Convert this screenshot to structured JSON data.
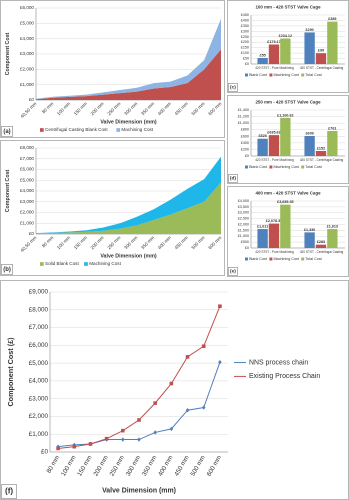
{
  "chart_data": [
    {
      "type": "area",
      "panel_label": "(a)",
      "y_title": "Component Cost",
      "x_title": "Valve Dimension (mm)",
      "legend": "bottom",
      "grid": true,
      "categories": [
        "40,50 mm",
        "80 mm",
        "100 mm",
        "150 mm",
        "200 mm",
        "250 mm",
        "300 mm",
        "350 mm",
        "400 mm",
        "450 mm",
        "500 mm",
        "600 mm"
      ],
      "series": [
        {
          "name": "Centrifugal Casting Blank Cost",
          "color": "#c0504d",
          "values": [
            50,
            150,
            200,
            250,
            350,
            450,
            550,
            750,
            850,
            1100,
            2000,
            3300
          ]
        },
        {
          "name": "Machining Cost",
          "color": "#8db4e2",
          "values": [
            30,
            60,
            80,
            100,
            150,
            200,
            250,
            350,
            350,
            500,
            600,
            2000
          ]
        }
      ],
      "ylim": [
        0,
        6000
      ],
      "yticks": [
        {
          "value": 0,
          "label": "£0"
        },
        {
          "value": 1000,
          "label": "£1,000"
        },
        {
          "value": 2000,
          "label": "£2,000"
        },
        {
          "value": 3000,
          "label": "£3,000"
        },
        {
          "value": 4000,
          "label": "£4,000"
        },
        {
          "value": 5000,
          "label": "£5,000"
        },
        {
          "value": 6000,
          "label": "£6,000"
        }
      ]
    },
    {
      "type": "area",
      "panel_label": "(b)",
      "y_title": "Component Cost",
      "x_title": "Valve Dimension (mm)",
      "legend": "bottom",
      "grid": true,
      "categories": [
        "40,50 mm",
        "80 mm",
        "100 mm",
        "150 mm",
        "200 mm",
        "250 mm",
        "300 mm",
        "350 mm",
        "400 mm",
        "450 mm",
        "500 mm",
        "600 mm"
      ],
      "series": [
        {
          "name": "Solid Blank Cost",
          "color": "#9bbb59",
          "values": [
            50,
            100,
            150,
            200,
            300,
            500,
            800,
            1300,
            1800,
            2400,
            3000,
            4800
          ]
        },
        {
          "name": "Machining Cost",
          "color": "#1fb7ea",
          "values": [
            30,
            50,
            80,
            150,
            300,
            500,
            800,
            1000,
            1400,
            1800,
            2100,
            2400
          ]
        }
      ],
      "ylim": [
        0,
        8000
      ],
      "yticks": [
        {
          "value": 0,
          "label": "£0"
        },
        {
          "value": 1000,
          "label": "£1,000"
        },
        {
          "value": 2000,
          "label": "£2,000"
        },
        {
          "value": 3000,
          "label": "£3,000"
        },
        {
          "value": 4000,
          "label": "£4,000"
        },
        {
          "value": 5000,
          "label": "£5,000"
        },
        {
          "value": 6000,
          "label": "£6,000"
        },
        {
          "value": 7000,
          "label": "£7,000"
        },
        {
          "value": 8000,
          "label": "£8,000"
        }
      ]
    },
    {
      "type": "bar",
      "panel_label": "(c)",
      "title": "100 mm - 420 STST Valve Cage",
      "legend": "bottom",
      "grid": true,
      "categories": [
        "420 STST - Pure Machining",
        "420 STST - Centrifugal Casting"
      ],
      "series": [
        {
          "name": "Blank Cost",
          "color": "#4f81bd",
          "values": [
            55,
            290
          ],
          "value_labels": [
            "£55",
            "£290"
          ]
        },
        {
          "name": "Machining Cost",
          "color": "#c0504d",
          "values": [
            179.17,
            99
          ],
          "value_labels": [
            "£179.17",
            "£99"
          ]
        },
        {
          "name": "Total Cost",
          "color": "#9bbb59",
          "values": [
            234.12,
            389
          ],
          "value_labels": [
            "£234.12",
            "£389"
          ]
        }
      ],
      "ylim": [
        0,
        450
      ],
      "yticks": [
        {
          "value": 0,
          "label": "£0"
        },
        {
          "value": 50,
          "label": "£50"
        },
        {
          "value": 100,
          "label": "£100"
        },
        {
          "value": 150,
          "label": "£150"
        },
        {
          "value": 200,
          "label": "£200"
        },
        {
          "value": 250,
          "label": "£250"
        },
        {
          "value": 300,
          "label": "£300"
        },
        {
          "value": 350,
          "label": "£350"
        },
        {
          "value": 400,
          "label": "£400"
        },
        {
          "value": 450,
          "label": "£450"
        }
      ]
    },
    {
      "type": "bar",
      "panel_label": "(d)",
      "title": "250 mm - 420 STST Valve Cage",
      "legend": "bottom",
      "grid": true,
      "categories": [
        "420 STST - Pure Machining",
        "420 STST - Centrifugal Casting"
      ],
      "series": [
        {
          "name": "Blank Cost",
          "color": "#4f81bd",
          "values": [
            525,
            609
          ],
          "value_labels": [
            "£525",
            "£609"
          ]
        },
        {
          "name": "Machining Cost",
          "color": "#c0504d",
          "values": [
            635.62,
            152
          ],
          "value_labels": [
            "£635.62",
            "£152"
          ]
        },
        {
          "name": "Total Cost",
          "color": "#9bbb59",
          "values": [
            1160.62,
            761
          ],
          "value_labels": [
            "£1,160.62",
            "£761"
          ]
        }
      ],
      "ylim": [
        0,
        1400
      ],
      "yticks": [
        {
          "value": 0,
          "label": "£0"
        },
        {
          "value": 200,
          "label": "£200"
        },
        {
          "value": 400,
          "label": "£400"
        },
        {
          "value": 600,
          "label": "£600"
        },
        {
          "value": 800,
          "label": "£800"
        },
        {
          "value": 1000,
          "label": "£1,000"
        },
        {
          "value": 1200,
          "label": "£1,200"
        },
        {
          "value": 1400,
          "label": "£1,400"
        }
      ]
    },
    {
      "type": "bar",
      "panel_label": "(e)",
      "title": "400 mm - 420 STST Valve Cage",
      "legend": "bottom",
      "grid": true,
      "categories": [
        "420 STST - Pure Machining",
        "420 STST - Centrifugal Casting"
      ],
      "series": [
        {
          "name": "Blank Cost",
          "color": "#4f81bd",
          "values": [
            1611,
            1330
          ],
          "value_labels": [
            "£1,611",
            "£1,330"
          ]
        },
        {
          "name": "Machining Cost",
          "color": "#c0504d",
          "values": [
            2078.35,
            283
          ],
          "value_labels": [
            "£2,078.35",
            "£283"
          ]
        },
        {
          "name": "Total Cost",
          "color": "#9bbb59",
          "values": [
            3689.35,
            1613
          ],
          "value_labels": [
            "£3,689.35",
            "£1,613"
          ]
        }
      ],
      "ylim": [
        0,
        4000
      ],
      "yticks": [
        {
          "value": 0,
          "label": "£0"
        },
        {
          "value": 500,
          "label": "£500"
        },
        {
          "value": 1000,
          "label": "£1,000"
        },
        {
          "value": 1500,
          "label": "£1,500"
        },
        {
          "value": 2000,
          "label": "£2,000"
        },
        {
          "value": 2500,
          "label": "£2,500"
        },
        {
          "value": 3000,
          "label": "£3,000"
        },
        {
          "value": 3500,
          "label": "£3,500"
        },
        {
          "value": 4000,
          "label": "£4,000"
        }
      ]
    },
    {
      "type": "line",
      "panel_label": "(f)",
      "y_title": "Component Cost (£)",
      "x_title": "Valve Dimension (mm)",
      "legend": "right",
      "grid": true,
      "categories": [
        "80 mm",
        "100 mm",
        "150 mm",
        "200 mm",
        "250 mm",
        "300 mm",
        "350 mm",
        "400 mm",
        "450 mm",
        "500 mm",
        "600 mm"
      ],
      "series": [
        {
          "name": "NNS process chain",
          "color": "#4f81bd",
          "marker": "diamond",
          "values": [
            300,
            400,
            450,
            700,
            700,
            700,
            1100,
            1300,
            2350,
            2500,
            5050
          ]
        },
        {
          "name": "Existing Process Chain",
          "color": "#c0504d",
          "marker": "square",
          "values": [
            200,
            300,
            450,
            750,
            1200,
            1800,
            2750,
            3850,
            5350,
            5950,
            8200
          ]
        }
      ],
      "ylim": [
        0,
        9000
      ],
      "yticks": [
        {
          "value": 0,
          "label": "£0"
        },
        {
          "value": 1000,
          "label": "£1,000"
        },
        {
          "value": 2000,
          "label": "£2,000"
        },
        {
          "value": 3000,
          "label": "£3,000"
        },
        {
          "value": 4000,
          "label": "£4,000"
        },
        {
          "value": 5000,
          "label": "£5,000"
        },
        {
          "value": 6000,
          "label": "£6,000"
        },
        {
          "value": 7000,
          "label": "£7,000"
        },
        {
          "value": 8000,
          "label": "£8,000"
        },
        {
          "value": 9000,
          "label": "£9,000"
        }
      ]
    }
  ]
}
